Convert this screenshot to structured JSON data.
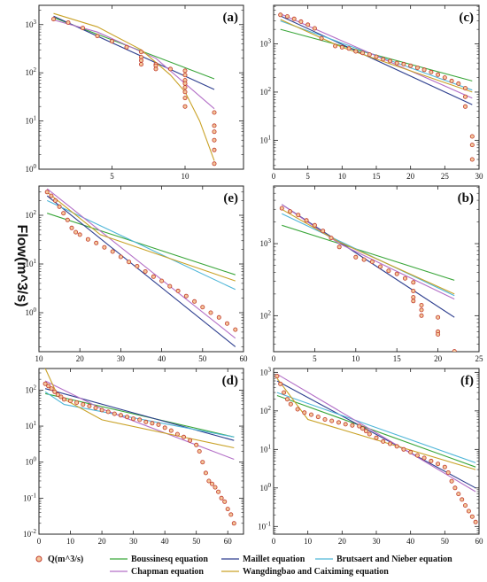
{
  "y_axis_label": "Flow(m^3/s)",
  "legend": [
    {
      "key": "q",
      "label": "Q(m^3/s)",
      "type": "marker",
      "color": "#c0392b",
      "fill": "#f4c79a"
    },
    {
      "key": "boussinesq",
      "label": "Boussinesq equation",
      "type": "line",
      "color": "#3aa63a"
    },
    {
      "key": "maillet",
      "label": "Maillet equation",
      "type": "line",
      "color": "#2e3f8f"
    },
    {
      "key": "brutsaert",
      "label": "Brutsaert and Nieber equation",
      "type": "line",
      "color": "#4fb6d8"
    },
    {
      "key": "chapman",
      "label": "Chapman equation",
      "type": "line",
      "color": "#b36fc7"
    },
    {
      "key": "wang",
      "label": "Wangdingbao and Caiximing equation",
      "type": "line",
      "color": "#c9a227"
    }
  ],
  "chart_data": [
    {
      "panel": "(a)",
      "type": "scatter",
      "xlim": [
        0,
        14
      ],
      "ylim_log10": [
        0,
        3.4
      ],
      "xticks": [
        "5",
        "10"
      ],
      "yticks": [
        "10^0",
        "10^1",
        "10^2",
        "10^3"
      ],
      "observed": {
        "x": [
          1,
          2,
          3,
          4,
          5,
          6,
          7,
          7,
          7,
          7,
          8,
          8,
          8,
          9,
          10,
          10,
          10,
          10,
          10,
          10,
          10,
          10,
          12,
          12,
          12,
          12,
          12,
          12
        ],
        "y": [
          1300,
          1100,
          850,
          580,
          450,
          340,
          270,
          210,
          180,
          150,
          150,
          140,
          120,
          120,
          110,
          90,
          70,
          60,
          50,
          40,
          30,
          20,
          15,
          8,
          6,
          4,
          2.5,
          1.3
        ]
      },
      "fits": {
        "boussinesq": {
          "x": [
            1,
            12
          ],
          "y": [
            1400,
            75
          ]
        },
        "maillet": {
          "x": [
            1,
            12
          ],
          "y": [
            1500,
            45
          ]
        },
        "chapman": {
          "x": [
            1,
            4,
            8,
            12
          ],
          "y": [
            1250,
            700,
            200,
            18
          ]
        },
        "wang": {
          "x": [
            1,
            4,
            7,
            9,
            10,
            11,
            12
          ],
          "y": [
            1700,
            900,
            300,
            90,
            40,
            10,
            1.5
          ]
        }
      }
    },
    {
      "panel": "(b)",
      "type": "scatter",
      "xlim": [
        0,
        25
      ],
      "ylim_log10": [
        1.5,
        3.8
      ],
      "xticks": [
        "0",
        "5",
        "10",
        "15",
        "20",
        "25"
      ],
      "yticks": [
        "10^2",
        "10^3"
      ],
      "observed": {
        "x": [
          1,
          2,
          3,
          4,
          5,
          6,
          7,
          8,
          10,
          11,
          12,
          13,
          14,
          15,
          16,
          17,
          17,
          17,
          17,
          18,
          18,
          18,
          20,
          20,
          20,
          22,
          22
        ],
        "y": [
          3100,
          2800,
          2500,
          2100,
          1800,
          1500,
          1200,
          900,
          650,
          600,
          560,
          480,
          420,
          380,
          330,
          290,
          220,
          180,
          160,
          140,
          120,
          100,
          95,
          60,
          55,
          32,
          27
        ]
      },
      "fits": {
        "boussinesq": {
          "x": [
            1,
            22
          ],
          "y": [
            1800,
            310
          ]
        },
        "maillet": {
          "x": [
            1,
            22
          ],
          "y": [
            3500,
            95
          ]
        },
        "brutsaert": {
          "x": [
            1,
            22
          ],
          "y": [
            2600,
            190
          ]
        },
        "chapman": {
          "x": [
            1,
            8,
            22
          ],
          "y": [
            3500,
            1000,
            170
          ]
        },
        "wang": {
          "x": [
            1,
            8,
            22
          ],
          "y": [
            3000,
            1050,
            200
          ]
        }
      }
    },
    {
      "panel": "(c)",
      "type": "scatter",
      "xlim": [
        0,
        30
      ],
      "ylim_log10": [
        0.4,
        3.8
      ],
      "xticks": [
        "0",
        "5",
        "10",
        "15",
        "20",
        "25",
        "30"
      ],
      "yticks": [
        "10^1",
        "10^2",
        "10^3"
      ],
      "observed": {
        "x": [
          1,
          2,
          3,
          4,
          5,
          6,
          7,
          9,
          10,
          11,
          12,
          13,
          14,
          15,
          16,
          17,
          18,
          19,
          20,
          21,
          22,
          23,
          24,
          25,
          26,
          27,
          28,
          28,
          28,
          29,
          29,
          29
        ],
        "y": [
          4000,
          3700,
          3300,
          2900,
          2500,
          2100,
          1300,
          900,
          850,
          800,
          700,
          650,
          600,
          540,
          480,
          440,
          400,
          380,
          350,
          320,
          290,
          260,
          230,
          200,
          170,
          150,
          120,
          80,
          50,
          12,
          8,
          4
        ]
      },
      "fits": {
        "boussinesq": {
          "x": [
            1,
            29
          ],
          "y": [
            2000,
            170
          ]
        },
        "maillet": {
          "x": [
            1,
            29
          ],
          "y": [
            3800,
            55
          ]
        },
        "brutsaert": {
          "x": [
            1,
            29
          ],
          "y": [
            3000,
            110
          ]
        },
        "chapman": {
          "x": [
            1,
            29
          ],
          "y": [
            4200,
            75
          ]
        },
        "wang": {
          "x": [
            1,
            10,
            29
          ],
          "y": [
            3200,
            850,
            100
          ]
        }
      }
    },
    {
      "panel": "(d)",
      "type": "scatter",
      "xlim": [
        0,
        65
      ],
      "ylim_log10": [
        -2,
        2.6
      ],
      "xticks": [
        "0",
        "10",
        "20",
        "30",
        "40",
        "50",
        "60"
      ],
      "yticks": [
        "10^-2",
        "10^-1",
        "10^0",
        "10^1",
        "10^2"
      ],
      "observed": {
        "x": [
          2,
          3,
          4,
          5,
          6,
          7,
          8,
          10,
          12,
          14,
          16,
          18,
          20,
          22,
          24,
          26,
          28,
          30,
          32,
          34,
          36,
          38,
          40,
          42,
          44,
          46,
          48,
          50,
          51,
          52,
          53,
          54,
          55,
          56,
          57,
          58,
          59,
          60,
          61,
          62
        ],
        "y": [
          150,
          130,
          110,
          90,
          75,
          65,
          55,
          50,
          45,
          40,
          36,
          32,
          28,
          25,
          22,
          20,
          18,
          16,
          15,
          13,
          12,
          11,
          9,
          7.5,
          6,
          5,
          4,
          3,
          2,
          1,
          0.5,
          0.3,
          0.25,
          0.2,
          0.15,
          0.1,
          0.08,
          0.05,
          0.035,
          0.02
        ]
      },
      "fits": {
        "boussinesq": {
          "x": [
            2,
            62
          ],
          "y": [
            80,
            5
          ]
        },
        "maillet": {
          "x": [
            2,
            62
          ],
          "y": [
            110,
            4
          ]
        },
        "brutsaert": {
          "x": [
            2,
            8,
            62
          ],
          "y": [
            90,
            40,
            5
          ]
        },
        "chapman": {
          "x": [
            2,
            20,
            62
          ],
          "y": [
            180,
            30,
            1.2
          ]
        },
        "wang": {
          "x": [
            2,
            6,
            20,
            62
          ],
          "y": [
            400,
            70,
            15,
            2.5
          ]
        }
      }
    },
    {
      "panel": "(e)",
      "type": "scatter",
      "xlim": [
        10,
        60
      ],
      "ylim_log10": [
        -0.8,
        2.6
      ],
      "xticks": [
        "10",
        "20",
        "30",
        "40",
        "50",
        "60"
      ],
      "yticks": [
        "10^0",
        "10^1",
        "10^2"
      ],
      "observed": {
        "x": [
          12,
          13,
          14,
          15,
          16,
          17,
          18,
          19,
          20,
          22,
          24,
          26,
          28,
          30,
          32,
          34,
          36,
          38,
          40,
          42,
          44,
          46,
          48,
          50,
          52,
          54,
          56,
          58
        ],
        "y": [
          300,
          250,
          200,
          150,
          110,
          80,
          55,
          45,
          40,
          32,
          27,
          22,
          18,
          14,
          11,
          9,
          7,
          5.5,
          4.5,
          3.5,
          2.8,
          2.2,
          1.7,
          1.3,
          1.0,
          0.8,
          0.6,
          0.45
        ]
      },
      "fits": {
        "boussinesq": {
          "x": [
            12,
            58
          ],
          "y": [
            110,
            6
          ]
        },
        "maillet": {
          "x": [
            12,
            58
          ],
          "y": [
            250,
            0.2
          ]
        },
        "brutsaert": {
          "x": [
            12,
            58
          ],
          "y": [
            200,
            3
          ]
        },
        "chapman": {
          "x": [
            12,
            58
          ],
          "y": [
            350,
            0.3
          ]
        },
        "wang": {
          "x": [
            12,
            25,
            58
          ],
          "y": [
            300,
            40,
            4.5
          ]
        }
      }
    },
    {
      "panel": "(f)",
      "type": "scatter",
      "xlim": [
        0,
        60
      ],
      "ylim_log10": [
        -1.2,
        3.1
      ],
      "xticks": [
        "0",
        "10",
        "20",
        "30",
        "40",
        "50",
        "60"
      ],
      "yticks": [
        "10^-1",
        "10^0",
        "10^1",
        "10^2",
        "10^3"
      ],
      "observed": {
        "x": [
          1,
          2,
          3,
          4,
          5,
          7,
          9,
          11,
          13,
          15,
          17,
          19,
          21,
          23,
          25,
          26,
          27,
          28,
          30,
          32,
          34,
          36,
          38,
          40,
          42,
          44,
          46,
          48,
          50,
          51,
          52,
          53,
          54,
          55,
          56,
          57,
          58,
          59
        ],
        "y": [
          800,
          500,
          300,
          200,
          150,
          110,
          90,
          80,
          70,
          60,
          55,
          50,
          45,
          42,
          40,
          35,
          30,
          25,
          20,
          16,
          14,
          12,
          10,
          8.5,
          7,
          6,
          5,
          4.2,
          3.5,
          2.5,
          1.5,
          1.0,
          0.7,
          0.5,
          0.35,
          0.25,
          0.18,
          0.13
        ]
      },
      "fits": {
        "boussinesq": {
          "x": [
            1,
            59
          ],
          "y": [
            250,
            3.5
          ]
        },
        "maillet": {
          "x": [
            1,
            59
          ],
          "y": [
            600,
            1
          ]
        },
        "brutsaert": {
          "x": [
            1,
            59
          ],
          "y": [
            300,
            4.5
          ]
        },
        "chapman": {
          "x": [
            1,
            59
          ],
          "y": [
            900,
            0.8
          ]
        },
        "wang": {
          "x": [
            1,
            10,
            59
          ],
          "y": [
            700,
            60,
            3
          ]
        }
      }
    }
  ]
}
